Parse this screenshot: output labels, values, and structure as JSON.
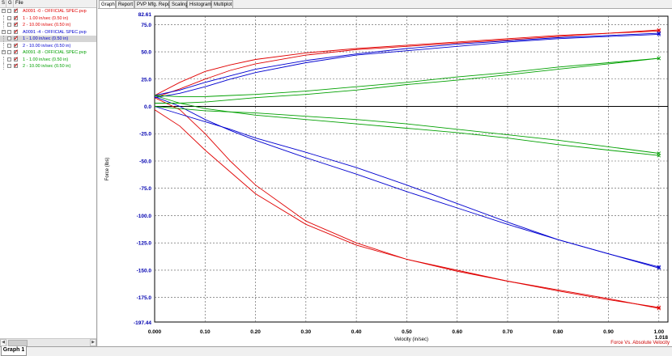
{
  "tree": {
    "headers": [
      "S",
      "G",
      "File"
    ],
    "rows": [
      {
        "label": "A0091 -0 - OFFICIAL SPEC.pvp",
        "level": 0,
        "color": "#e00000",
        "selected": false
      },
      {
        "label": "1 - 1.00 in/sec (0.50 in)",
        "level": 1,
        "color": "#e00000",
        "selected": false
      },
      {
        "label": "2 - 10.00 in/sec (0.50 in)",
        "level": 1,
        "color": "#e00000",
        "selected": false
      },
      {
        "label": "A0091 -4 - OFFICIAL SPEC.pvp",
        "level": 0,
        "color": "#0000d0",
        "selected": false
      },
      {
        "label": "1 - 1.00 in/sec (0.50 in)",
        "level": 1,
        "color": "#0000d0",
        "selected": true
      },
      {
        "label": "2 - 10.00 in/sec (0.50 in)",
        "level": 1,
        "color": "#0000d0",
        "selected": false
      },
      {
        "label": "A0091 -8 - OFFICIAL SPEC.pvp",
        "level": 0,
        "color": "#00a000",
        "selected": false
      },
      {
        "label": "1 - 1.00 in/sec (0.50 in)",
        "level": 1,
        "color": "#00a000",
        "selected": false
      },
      {
        "label": "2 - 10.00 in/sec (0.50 in)",
        "level": 1,
        "color": "#00a000",
        "selected": false
      }
    ]
  },
  "tabs": [
    "Graph",
    "Report",
    "PVP Mfg. Report",
    "Scaling",
    "Histogram",
    "Multiplot"
  ],
  "active_tab": "Graph",
  "bottom_tab": "Graph 1",
  "chart_data": {
    "type": "line",
    "title": "",
    "caption": "Force Vs. Absolute Velocity",
    "xlabel": "Velocity (in/sec)",
    "ylabel": "Force (lbs)",
    "xlim": [
      0.0,
      1.018
    ],
    "ylim": [
      -197.44,
      82.61
    ],
    "x_ticks": [
      "0.10",
      "0.20",
      "0.30",
      "0.40",
      "0.50",
      "0.60",
      "0.70",
      "0.80",
      "0.90",
      "1.00"
    ],
    "x_tick_values": [
      0.1,
      0.2,
      0.3,
      0.4,
      0.5,
      0.6,
      0.7,
      0.8,
      0.9,
      1.0
    ],
    "x_min_label": "0.000",
    "x_max_label": "1.018",
    "y_ticks": [
      "75.0",
      "50.0",
      "25.0",
      "0.0",
      "-25.0",
      "-50.0",
      "-75.0",
      "-100.0",
      "-125.0",
      "-150.0",
      "-175.0"
    ],
    "y_tick_values": [
      75,
      50,
      25,
      0,
      -25,
      -50,
      -75,
      -100,
      -125,
      -150,
      -175
    ],
    "y_max_label": "82.61",
    "y_min_label": "-197.44",
    "grid": true,
    "series": [
      {
        "color": "#e00000",
        "x": [
          0,
          0.05,
          0.1,
          0.15,
          0.2,
          0.3,
          0.4,
          0.5,
          0.6,
          0.7,
          0.8,
          0.9,
          1.0
        ],
        "y": [
          10,
          22,
          32,
          38,
          43,
          49,
          53,
          56,
          59,
          62,
          65,
          67,
          70
        ]
      },
      {
        "color": "#e00000",
        "x": [
          0,
          0.05,
          0.1,
          0.15,
          0.2,
          0.3,
          0.4,
          0.5,
          0.6,
          0.7,
          0.8,
          0.9,
          1.0
        ],
        "y": [
          8,
          16,
          25,
          33,
          39,
          47,
          52,
          55,
          58,
          61,
          64,
          67,
          69
        ]
      },
      {
        "color": "#e00000",
        "x": [
          0,
          0.05,
          0.1,
          0.15,
          0.2,
          0.3,
          0.4,
          0.5,
          0.6,
          0.7,
          0.8,
          0.9,
          1.0
        ],
        "y": [
          -3,
          -18,
          -40,
          -60,
          -80,
          -108,
          -127,
          -140,
          -150,
          -160,
          -168,
          -176,
          -185
        ]
      },
      {
        "color": "#e00000",
        "x": [
          0,
          0.05,
          0.1,
          0.15,
          0.2,
          0.3,
          0.4,
          0.5,
          0.6,
          0.7,
          0.8,
          0.9,
          1.0
        ],
        "y": [
          8,
          -3,
          -25,
          -50,
          -72,
          -105,
          -125,
          -140,
          -151,
          -160,
          -169,
          -177,
          -184
        ]
      },
      {
        "color": "#0000d0",
        "x": [
          0,
          0.05,
          0.1,
          0.15,
          0.2,
          0.3,
          0.4,
          0.5,
          0.6,
          0.7,
          0.8,
          0.9,
          1.0
        ],
        "y": [
          10,
          15,
          22,
          28,
          34,
          42,
          48,
          53,
          57,
          60,
          63,
          65,
          67
        ]
      },
      {
        "color": "#0000d0",
        "x": [
          0,
          0.05,
          0.1,
          0.15,
          0.2,
          0.3,
          0.4,
          0.5,
          0.6,
          0.7,
          0.8,
          0.9,
          1.0
        ],
        "y": [
          8,
          12,
          18,
          25,
          31,
          40,
          47,
          51,
          55,
          59,
          62,
          64,
          66
        ]
      },
      {
        "color": "#0000d0",
        "x": [
          0,
          0.05,
          0.1,
          0.15,
          0.2,
          0.3,
          0.4,
          0.5,
          0.6,
          0.7,
          0.8,
          0.9,
          1.0
        ],
        "y": [
          0,
          -7,
          -14,
          -21,
          -29,
          -42,
          -56,
          -72,
          -89,
          -106,
          -122,
          -135,
          -148
        ]
      },
      {
        "color": "#0000d0",
        "x": [
          0,
          0.05,
          0.1,
          0.15,
          0.2,
          0.3,
          0.4,
          0.5,
          0.6,
          0.7,
          0.8,
          0.9,
          1.0
        ],
        "y": [
          9,
          0,
          -12,
          -22,
          -31,
          -47,
          -62,
          -78,
          -93,
          -108,
          -122,
          -135,
          -147
        ]
      },
      {
        "color": "#00a000",
        "x": [
          0,
          0.05,
          0.1,
          0.15,
          0.2,
          0.3,
          0.4,
          0.5,
          0.6,
          0.7,
          0.8,
          0.9,
          1.0
        ],
        "y": [
          10,
          9,
          9,
          10,
          11,
          14,
          18,
          22,
          27,
          31,
          36,
          40,
          44
        ]
      },
      {
        "color": "#00a000",
        "x": [
          0,
          0.05,
          0.1,
          0.15,
          0.2,
          0.3,
          0.4,
          0.5,
          0.6,
          0.7,
          0.8,
          0.9,
          1.0
        ],
        "y": [
          3,
          3,
          4,
          6,
          8,
          11,
          15,
          20,
          24,
          29,
          34,
          39,
          44
        ]
      },
      {
        "color": "#00a000",
        "x": [
          0,
          0.05,
          0.1,
          0.15,
          0.2,
          0.3,
          0.4,
          0.5,
          0.6,
          0.7,
          0.8,
          0.9,
          1.0
        ],
        "y": [
          0,
          -2,
          -4,
          -5,
          -6,
          -9,
          -12,
          -16,
          -21,
          -26,
          -31,
          -37,
          -43
        ]
      },
      {
        "color": "#00a000",
        "x": [
          0,
          0.05,
          0.1,
          0.15,
          0.2,
          0.3,
          0.4,
          0.5,
          0.6,
          0.7,
          0.8,
          0.9,
          1.0
        ],
        "y": [
          10,
          3,
          -2,
          -5,
          -8,
          -12,
          -16,
          -20,
          -24,
          -29,
          -35,
          -40,
          -45
        ]
      }
    ]
  }
}
